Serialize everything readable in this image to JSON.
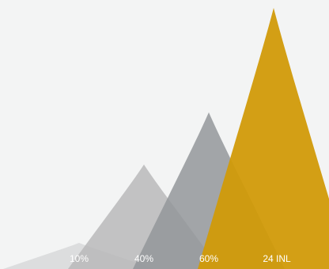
{
  "chart_data": {
    "type": "area",
    "categories": [
      "10%",
      "40%",
      "60%",
      "24 INL"
    ],
    "values": [
      10,
      40,
      60,
      100
    ],
    "ylim": [
      0,
      100
    ],
    "colors": [
      "#d7d8d9",
      "#b8b9ba",
      "#93969a",
      "#d19a08"
    ],
    "grid": false,
    "legend": "none",
    "title": "",
    "xlabel": "",
    "ylabel": ""
  }
}
